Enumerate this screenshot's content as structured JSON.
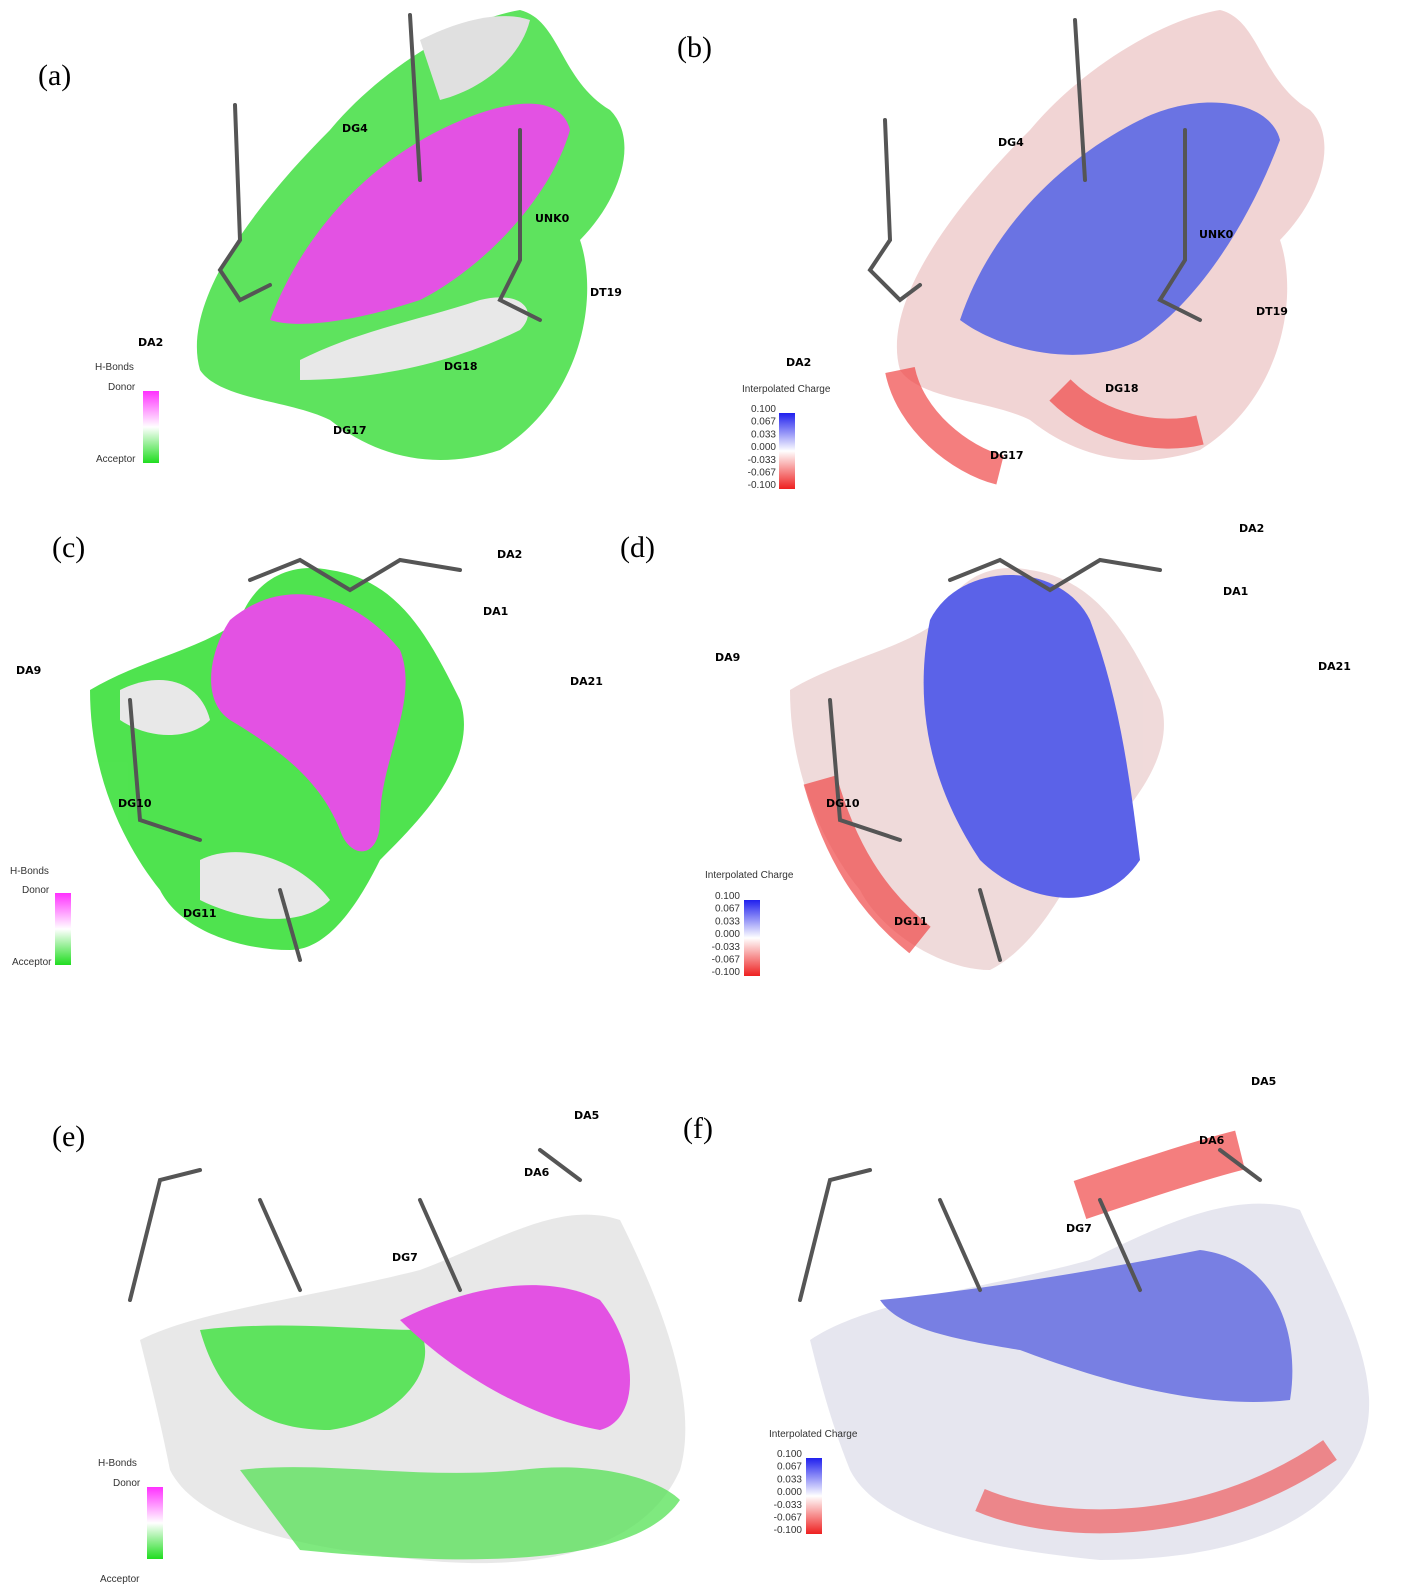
{
  "panels": [
    {
      "label": "(a)",
      "residues": [
        "DA2",
        "DG4",
        "UNK0",
        "DT19",
        "DG18",
        "DG17"
      ],
      "legend": {
        "title": "H-Bonds",
        "top": "Donor",
        "bottom": "Acceptor"
      }
    },
    {
      "label": "(b)",
      "residues": [
        "DG4",
        "UNK0",
        "DT19",
        "DA2",
        "DG18",
        "DG17"
      ],
      "legend": {
        "title": "Interpolated Charge",
        "scale": [
          "0.100",
          "0.067",
          "0.033",
          "0.000",
          "-0.033",
          "-0.067",
          "-0.100"
        ]
      }
    },
    {
      "label": "(c)",
      "residues": [
        "DA2",
        "DA1",
        "DA9",
        "DA21",
        "DG10",
        "DG11"
      ],
      "legend": {
        "title": "H-Bonds",
        "top": "Donor",
        "bottom": "Acceptor"
      }
    },
    {
      "label": "(d)",
      "residues": [
        "DA2",
        "DA1",
        "DA9",
        "DA21",
        "DG10",
        "DG11"
      ],
      "legend": {
        "title": "Interpolated Charge",
        "scale": [
          "0.100",
          "0.067",
          "0.033",
          "0.000",
          "-0.033",
          "-0.067",
          "-0.100"
        ]
      }
    },
    {
      "label": "(e)",
      "residues": [
        "DA5",
        "DA6",
        "DG7"
      ],
      "legend": {
        "title": "H-Bonds",
        "top": "Donor",
        "bottom": "Acceptor"
      }
    },
    {
      "label": "(f)",
      "residues": [
        "DA5",
        "DA6",
        "DG7"
      ],
      "legend": {
        "title": "Interpolated Charge",
        "scale": [
          "0.100",
          "0.067",
          "0.033",
          "0.000",
          "-0.033",
          "-0.067",
          "-0.100"
        ]
      }
    }
  ]
}
